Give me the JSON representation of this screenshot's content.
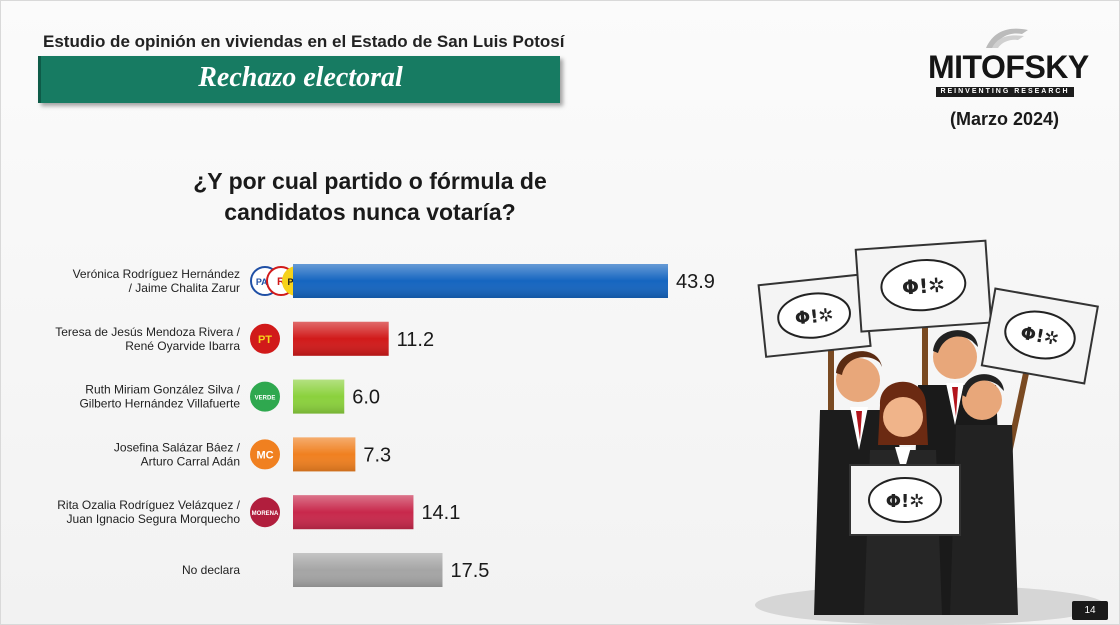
{
  "header": {
    "study": "Estudio de opinión en viviendas en el Estado de San Luis Potosí",
    "banner": "Rechazo electoral",
    "date": "(Marzo 2024)"
  },
  "logo": {
    "name": "MITOFSKY",
    "tagline": "REINVENTING RESEARCH"
  },
  "question": {
    "line1": "¿Y por cual partido o fórmula de",
    "line2": "candidatos nunca votaría?"
  },
  "page_number": "14",
  "chart_data": {
    "type": "bar",
    "orientation": "horizontal",
    "title": "¿Y por cual partido o fórmula de candidatos nunca votaría?",
    "categories": [
      [
        "Verónica Rodríguez Hernández",
        "/ Jaime Chalita Zarur"
      ],
      [
        "Teresa de Jesús Mendoza Rivera /",
        "René Oyarvide Ibarra"
      ],
      [
        "Ruth Miriam González Silva /",
        "Gilberto Hernández Villafuerte"
      ],
      [
        "Josefina Salázar Báez /",
        "Arturo Carral Adán"
      ],
      [
        "Rita Ozalia Rodríguez Velázquez /",
        "Juan Ignacio Segura Morquecho"
      ],
      [
        "No declara"
      ]
    ],
    "values": [
      43.9,
      11.2,
      6.0,
      7.3,
      14.1,
      17.5
    ],
    "value_labels": [
      "43.9",
      "11.2",
      "6.0",
      "7.3",
      "14.1",
      "17.5"
    ],
    "bar_colors": [
      "#1565c0",
      "#d11a1a",
      "#8bd13d",
      "#f08020",
      "#c8284b",
      "#a5a5a5"
    ],
    "parties": [
      [
        {
          "label": "PAN",
          "bg": "#ffffff",
          "fg": "#1f4fa5",
          "ring": "#1f4fa5"
        },
        {
          "label": "R",
          "bg": "#ffffff",
          "fg": "#d11a1a",
          "ring": "#d11a1a"
        },
        {
          "label": "PRD",
          "bg": "#f6d21b",
          "fg": "#1a1a1a",
          "ring": "#f6d21b"
        }
      ],
      [
        {
          "label": "PT",
          "bg": "#d11a1a",
          "fg": "#f6d21b",
          "ring": "#d11a1a"
        }
      ],
      [
        {
          "label": "VERDE",
          "bg": "#2fa84f",
          "fg": "#ffffff",
          "ring": "#2fa84f"
        }
      ],
      [
        {
          "label": "MC",
          "bg": "#f08020",
          "fg": "#ffffff",
          "ring": "#f08020"
        }
      ],
      [
        {
          "label": "MORENA",
          "bg": "#b11e3d",
          "fg": "#ffffff",
          "ring": "#b11e3d"
        }
      ],
      []
    ],
    "xlim": [
      0,
      50
    ],
    "legend": "none",
    "grid": false
  },
  "illustration": {
    "sign_text": "Φ!✲",
    "description_icon": "protest-people-icon"
  }
}
